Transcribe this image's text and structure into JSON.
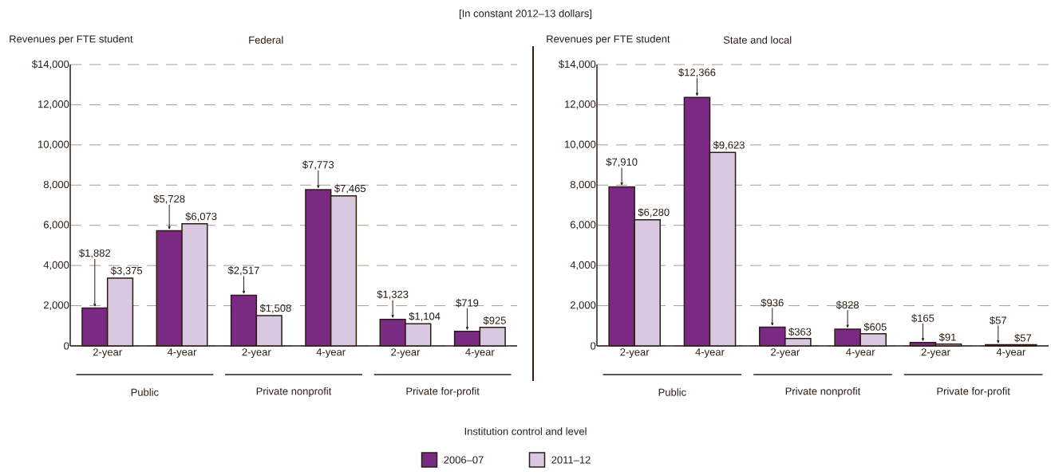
{
  "chart_data": [
    {
      "type": "bar",
      "title": "Federal",
      "subtitle": "[In constant 2012–13 dollars]",
      "ylabel": "Revenues per FTE student",
      "xlabel": "Institution control and level",
      "categories": [
        "2-year",
        "4-year",
        "2-year",
        "4-year",
        "2-year",
        "4-year"
      ],
      "annotations": [
        "Public",
        "Private nonprofit",
        "Private for-profit"
      ],
      "series": [
        {
          "name": "2006–07",
          "color": "#7b2a84",
          "values": [
            1882,
            5728,
            2517,
            7773,
            1323,
            719
          ],
          "value_labels": [
            "$1,882",
            "$5,728",
            "$2,517",
            "$7,773",
            "$1,323",
            "$719"
          ]
        },
        {
          "name": "2011–12",
          "color": "#d9c9e0",
          "values": [
            3375,
            6073,
            1508,
            7465,
            1104,
            925
          ],
          "value_labels": [
            "$3,375",
            "$6,073",
            "$1,508",
            "$7,465",
            "$1,104",
            "$925"
          ]
        }
      ],
      "ylim": [
        0,
        14000
      ],
      "yticks": [
        0,
        {
          "value": 2000,
          "label": "2,000"
        },
        {
          "value": 4000,
          "label": "4,000"
        },
        {
          "value": 6000,
          "label": "6,000"
        },
        {
          "value": 8000,
          "label": "8,000"
        },
        {
          "value": 10000,
          "label": "10,000"
        },
        {
          "value": 12000,
          "label": "12,000"
        },
        {
          "value": 14000,
          "label": "$14,000"
        }
      ],
      "grid": "y",
      "legend": "bottom"
    },
    {
      "type": "bar",
      "title": "State and local",
      "ylabel": "Revenues per FTE student",
      "categories": [
        "2-year",
        "4-year",
        "2-year",
        "4-year",
        "2-year",
        "4-year"
      ],
      "annotations": [
        "Public",
        "Private nonprofit",
        "Private for-profit"
      ],
      "series": [
        {
          "color": "#7b2a84",
          "values": [
            7910,
            12366,
            936,
            828,
            165,
            57
          ],
          "value_labels": [
            "$7,910",
            "$12,366",
            "$936",
            "$828",
            "$165",
            "$57"
          ]
        },
        {
          "color": "#d9c9e0",
          "values": [
            6280,
            9623,
            363,
            605,
            91,
            57
          ],
          "value_labels": [
            "$6,280",
            "$9,623",
            "$363",
            "$605",
            "$91",
            "$57"
          ]
        }
      ],
      "ylim": [
        0,
        14000
      ],
      "yticks": [
        0,
        {
          "value": 2000,
          "label": "2,000"
        },
        {
          "value": 4000,
          "label": "4,000"
        },
        {
          "value": 6000,
          "label": "6,000"
        },
        {
          "value": 8000,
          "label": "8,000"
        },
        {
          "value": 10000,
          "label": "10,000"
        },
        {
          "value": 12000,
          "label": "12,000"
        },
        {
          "value": 14000,
          "label": "$14,000"
        }
      ],
      "grid": "y"
    }
  ]
}
